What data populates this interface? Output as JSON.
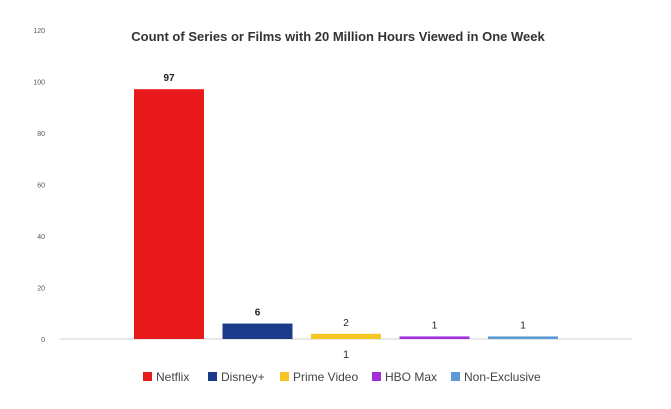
{
  "chart_data": {
    "type": "bar",
    "title": "Count of Series or Films with 20 Million Hours Viewed  in One Week",
    "categories": [
      "1"
    ],
    "xlabel": "",
    "ylabel": "",
    "ylim": [
      0,
      120
    ],
    "yticks": [
      "0",
      "20",
      "40",
      "60",
      "80",
      "100",
      "120"
    ],
    "grid": false,
    "legend_position": "bottom",
    "series": [
      {
        "name": "Netflix",
        "values": [
          97
        ],
        "color": "#e8191a",
        "label": "97"
      },
      {
        "name": "Disney+",
        "values": [
          6
        ],
        "color": "#1b3a8a",
        "label": "6"
      },
      {
        "name": "Prime Video",
        "values": [
          2
        ],
        "color": "#f3c623",
        "label": "2"
      },
      {
        "name": "HBO Max",
        "values": [
          1
        ],
        "color": "#a12fdc",
        "label": "1"
      },
      {
        "name": "Non-Exclusive",
        "values": [
          1
        ],
        "color": "#5b9bd5",
        "label": "1"
      }
    ]
  }
}
